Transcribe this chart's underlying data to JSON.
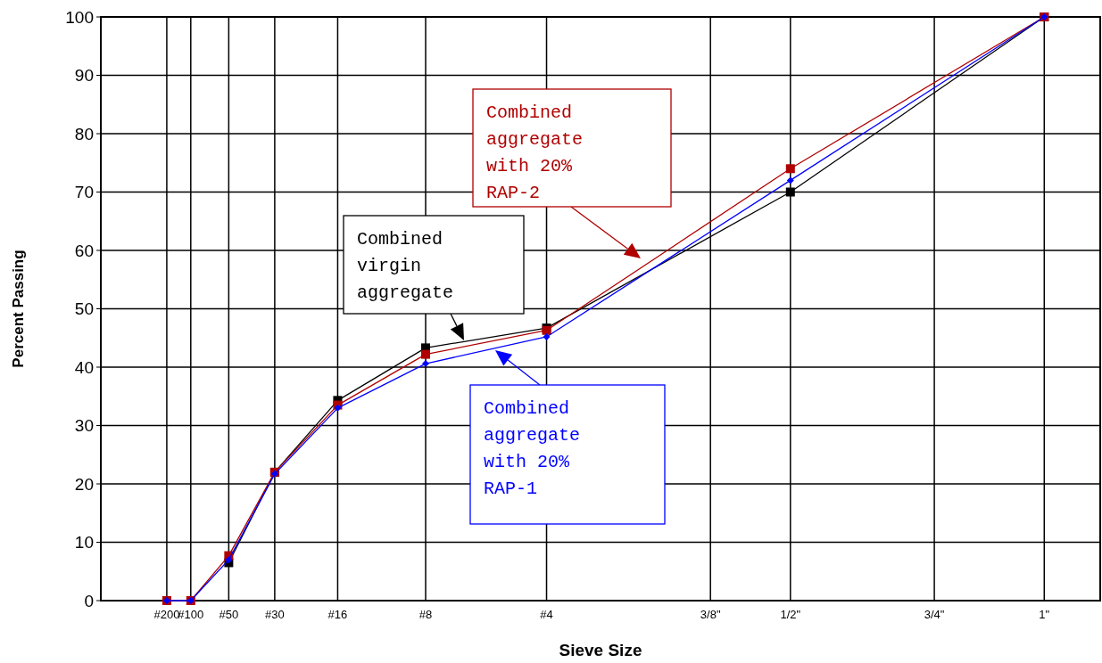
{
  "chart_data": {
    "type": "line",
    "xlabel": "Sieve Size",
    "ylabel": "Percent Passing",
    "categories": [
      "#200",
      "#100",
      "#50",
      "#30",
      "#16",
      "#8",
      "#4",
      "3/8\"",
      "1/2\"",
      "3/4\"",
      "1\""
    ],
    "series": [
      {
        "values": [
          null,
          null,
          6.5,
          22,
          34.3,
          43.3,
          46.7,
          null,
          70,
          null,
          100
        ],
        "color": "#000000",
        "marker": "square"
      },
      {
        "values": [
          0,
          0,
          7.7,
          22,
          33.5,
          42.2,
          46.3,
          null,
          74,
          null,
          100
        ],
        "color": "#b00000",
        "marker": "square"
      },
      {
        "values": [
          0,
          0,
          7,
          21.7,
          33,
          40.6,
          45.2,
          null,
          72,
          null,
          100
        ],
        "color": "#0000ff",
        "marker": "diamond"
      }
    ],
    "ylim": [
      0,
      100
    ],
    "yticks": [
      0,
      10,
      20,
      30,
      40,
      50,
      60,
      70,
      80,
      90,
      100
    ],
    "grid": true,
    "annotations": [
      "Combined\nvirgin\naggregate",
      "Combined\naggregate\nwith 20%\nRAP-2",
      "Combined\naggregate\nwith 20%\nRAP-1"
    ]
  }
}
